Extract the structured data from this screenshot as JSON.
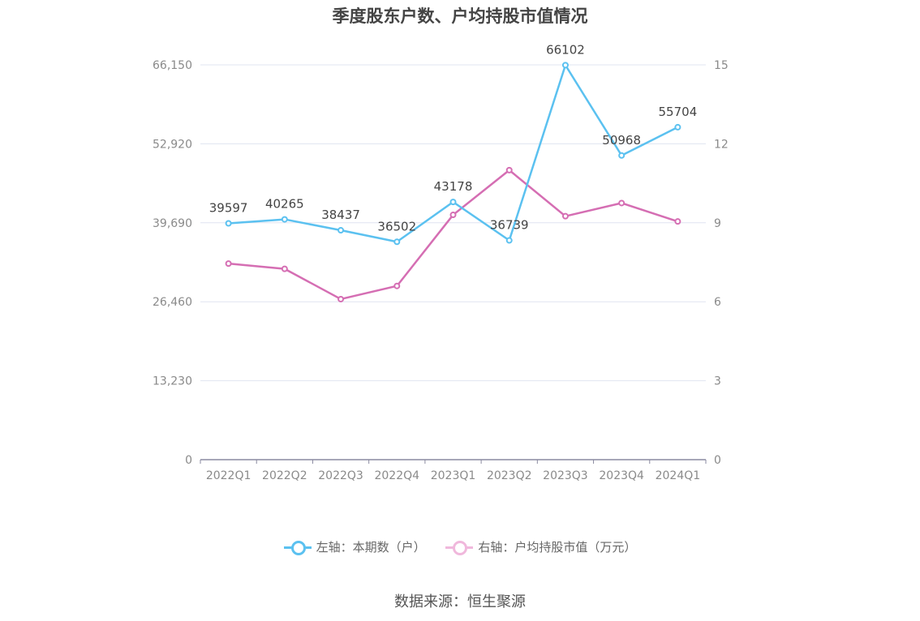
{
  "title": "季度股东户数、户均持股市值情况",
  "source": "数据来源：恒生聚源",
  "chart_data": {
    "type": "line",
    "categories": [
      "2022Q1",
      "2022Q2",
      "2022Q3",
      "2022Q4",
      "2023Q1",
      "2023Q2",
      "2023Q3",
      "2023Q4",
      "2024Q1"
    ],
    "y_left": {
      "ticks": [
        "0",
        "13,230",
        "26,460",
        "39,690",
        "52,920",
        "66,150"
      ],
      "range": [
        0,
        66150
      ]
    },
    "y_right": {
      "ticks": [
        "0",
        "3",
        "6",
        "9",
        "12",
        "15"
      ],
      "range": [
        0,
        15
      ]
    },
    "grid": true,
    "legend_position": "bottom",
    "series": [
      {
        "name": "左轴：本期数（户）",
        "axis": "left",
        "color": "#5bc1f0",
        "values": [
          39597,
          40265,
          38437,
          36502,
          43178,
          36739,
          66102,
          50968,
          55704
        ],
        "labels": [
          "39597",
          "40265",
          "38437",
          "36502",
          "43178",
          "36739",
          "66102",
          "50968",
          "55704"
        ]
      },
      {
        "name": "右轴：户均持股市值（万元）",
        "axis": "right",
        "color": "#d56eb3",
        "values": [
          7.45,
          7.25,
          6.1,
          6.6,
          9.3,
          11.0,
          9.25,
          9.75,
          9.05
        ]
      }
    ]
  }
}
